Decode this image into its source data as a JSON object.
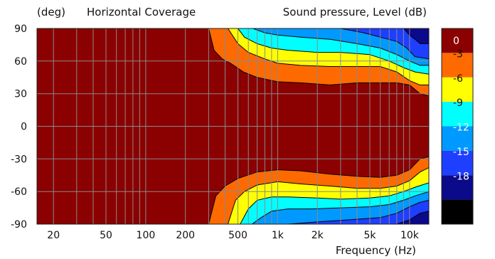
{
  "chart_data": {
    "type": "heatmap",
    "title": "Horizontal Coverage",
    "ylabel": "(deg)",
    "xlabel": "Frequency  (Hz)",
    "legend_title": "Sound pressure, Level  (dB)",
    "x_scale": "log",
    "xlim": [
      15,
      14000
    ],
    "ylim": [
      -90,
      90
    ],
    "x_ticks": [
      {
        "value": 20,
        "label": "20"
      },
      {
        "value": 50,
        "label": "50"
      },
      {
        "value": 100,
        "label": "100"
      },
      {
        "value": 200,
        "label": "200"
      },
      {
        "value": 500,
        "label": "500"
      },
      {
        "value": 1000,
        "label": "1k"
      },
      {
        "value": 2000,
        "label": "2k"
      },
      {
        "value": 5000,
        "label": "5k"
      },
      {
        "value": 10000,
        "label": "10k"
      }
    ],
    "y_ticks": [
      {
        "value": 90,
        "label": "90"
      },
      {
        "value": 60,
        "label": "60"
      },
      {
        "value": 30,
        "label": "30"
      },
      {
        "value": 0,
        "label": "0"
      },
      {
        "value": -30,
        "label": "-30"
      },
      {
        "value": -60,
        "label": "-60"
      },
      {
        "value": -90,
        "label": "-90"
      }
    ],
    "grid": true,
    "legend_position": "right",
    "levels": [
      {
        "label": "0",
        "color": "#8b0000"
      },
      {
        "label": "-3",
        "color": "#ff6a00"
      },
      {
        "label": "-6",
        "color": "#ffff00"
      },
      {
        "label": "-9",
        "color": "#00ffff"
      },
      {
        "label": "-12",
        "color": "#0099ff"
      },
      {
        "label": "-15",
        "color": "#1f3fff"
      },
      {
        "label": "-18",
        "color": "#0a0a8a"
      },
      {
        "label": "",
        "color": "#000000"
      }
    ],
    "contours": [
      {
        "level": "-3",
        "freq": [
          300,
          330,
          380,
          440,
          550,
          700,
          1000,
          1500,
          2500,
          4000,
          6000,
          8000,
          10000,
          12000,
          14000
        ],
        "angle": [
          90,
          70,
          62,
          58,
          50,
          45,
          41,
          40,
          38,
          40,
          40,
          40,
          38,
          30,
          28
        ]
      },
      {
        "level": "-6",
        "freq": [
          420,
          500,
          600,
          800,
          1000,
          1500,
          2500,
          4000,
          6000,
          8000,
          10000,
          12000,
          14000
        ],
        "angle": [
          90,
          76,
          68,
          62,
          58,
          56,
          55,
          55,
          55,
          50,
          42,
          38,
          38
        ]
      },
      {
        "level": "-9",
        "freq": [
          500,
          560,
          700,
          900,
          1200,
          2000,
          3000,
          5000,
          7000,
          9000,
          11000,
          14000
        ],
        "angle": [
          90,
          82,
          76,
          72,
          70,
          68,
          68,
          66,
          60,
          54,
          50,
          48
        ]
      },
      {
        "level": "-12",
        "freq": [
          650,
          800,
          1000,
          1500,
          2500,
          4000,
          6000,
          8000,
          10000,
          12000,
          14000
        ],
        "angle": [
          90,
          86,
          84,
          82,
          80,
          76,
          72,
          66,
          60,
          56,
          56
        ]
      },
      {
        "level": "-15",
        "freq": [
          3000,
          4500,
          6000,
          8000,
          9500,
          11000,
          14000
        ],
        "angle": [
          90,
          86,
          82,
          78,
          72,
          64,
          62
        ]
      },
      {
        "level": "-18",
        "freq": [
          9000,
          10000,
          11000,
          12000,
          14000
        ],
        "angle": [
          90,
          84,
          80,
          76,
          76
        ]
      }
    ],
    "bottom_contours": [
      {
        "level": "-3",
        "freq": [
          300,
          340,
          400,
          500,
          700,
          1000,
          1500,
          2500,
          4000,
          6000,
          8000,
          10000,
          12000,
          14000
        ],
        "angle": [
          -90,
          -64,
          -55,
          -48,
          -42,
          -40,
          -41,
          -44,
          -46,
          -47,
          -45,
          -40,
          -30,
          -28
        ]
      },
      {
        "level": "-6",
        "freq": [
          420,
          480,
          560,
          700,
          1000,
          1500,
          2500,
          4000,
          6000,
          8000,
          10000,
          12000,
          14000
        ],
        "angle": [
          -90,
          -68,
          -60,
          -54,
          -51,
          -53,
          -55,
          -57,
          -57,
          -55,
          -50,
          -42,
          -38
        ]
      },
      {
        "level": "-9",
        "freq": [
          520,
          600,
          700,
          900,
          1200,
          2000,
          3000,
          5000,
          7000,
          9000,
          11000,
          14000
        ],
        "angle": [
          -90,
          -76,
          -68,
          -65,
          -65,
          -66,
          -67,
          -66,
          -64,
          -60,
          -56,
          -52
        ]
      },
      {
        "level": "-12",
        "freq": [
          640,
          750,
          900,
          1200,
          1800,
          3000,
          5000,
          7000,
          9000,
          11000,
          14000
        ],
        "angle": [
          -90,
          -84,
          -78,
          -76,
          -76,
          -75,
          -74,
          -72,
          -68,
          -64,
          -60
        ]
      },
      {
        "level": "-15",
        "freq": [
          1200,
          2000,
          3500,
          6000,
          8000,
          10000,
          12000,
          14000
        ],
        "angle": [
          -90,
          -88,
          -86,
          -84,
          -80,
          -74,
          -70,
          -68
        ]
      },
      {
        "level": "-18",
        "freq": [
          8000,
          10000,
          12000,
          14000
        ],
        "angle": [
          -90,
          -86,
          -80,
          -78
        ]
      }
    ]
  }
}
